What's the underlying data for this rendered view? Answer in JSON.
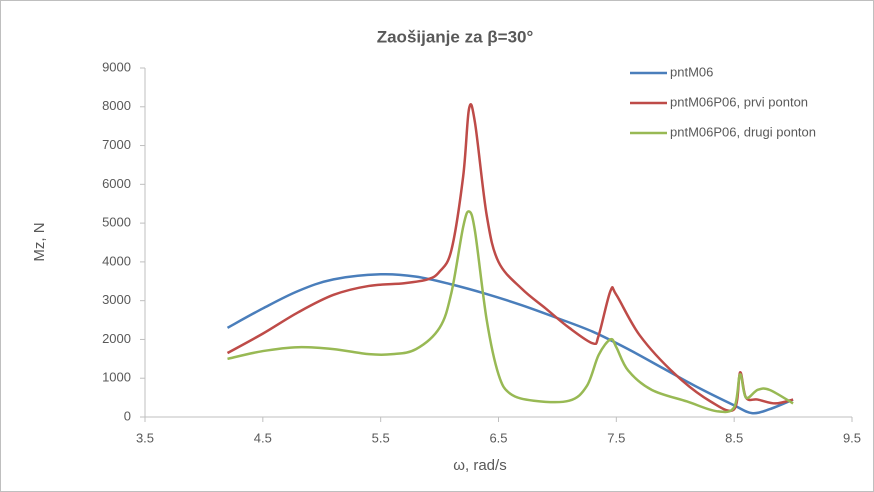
{
  "chart_data": {
    "type": "line",
    "title": "Zaošijanje za β=30°",
    "x_label": "ω, rad/s",
    "y_label": "Mz, N",
    "xlim": [
      3.5,
      9.5
    ],
    "xticks": [
      3.5,
      4.5,
      5.5,
      6.5,
      7.5,
      8.5,
      9.5
    ],
    "ylim": [
      0,
      9000
    ],
    "yticks": [
      0,
      1000,
      2000,
      3000,
      4000,
      5000,
      6000,
      7000,
      8000,
      9000
    ],
    "grid": false,
    "legend": "upper right",
    "series": [
      {
        "name": "pntM06",
        "color": "#4a7ebb",
        "x": [
          4.2,
          4.5,
          4.8,
          5.1,
          5.5,
          5.8,
          6.1,
          6.4,
          6.7,
          7.0,
          7.3,
          7.6,
          7.9,
          8.2,
          8.5,
          8.65,
          8.8,
          9.0
        ],
        "values": [
          2300,
          2800,
          3250,
          3550,
          3680,
          3620,
          3420,
          3170,
          2880,
          2550,
          2200,
          1750,
          1250,
          750,
          300,
          100,
          200,
          450
        ]
      },
      {
        "name": "pntM06P06, prvi ponton",
        "color": "#be4b48",
        "x": [
          4.2,
          4.5,
          4.8,
          5.1,
          5.4,
          5.7,
          5.9,
          6.0,
          6.1,
          6.2,
          6.25,
          6.3,
          6.4,
          6.5,
          6.7,
          6.9,
          7.1,
          7.3,
          7.35,
          7.45,
          7.5,
          7.7,
          8.0,
          8.3,
          8.5,
          8.55,
          8.6,
          8.7,
          8.85,
          9.0
        ],
        "values": [
          1650,
          2150,
          2700,
          3150,
          3380,
          3450,
          3550,
          3750,
          4300,
          6200,
          7950,
          7600,
          5200,
          4000,
          3300,
          2800,
          2300,
          1900,
          2100,
          3250,
          3150,
          2100,
          1100,
          400,
          200,
          1150,
          500,
          450,
          350,
          450
        ]
      },
      {
        "name": "pntM06P06, drugi ponton",
        "color": "#98b954",
        "x": [
          4.2,
          4.5,
          4.8,
          5.1,
          5.4,
          5.6,
          5.8,
          6.0,
          6.1,
          6.2,
          6.25,
          6.3,
          6.4,
          6.5,
          6.6,
          6.8,
          7.1,
          7.25,
          7.35,
          7.45,
          7.5,
          7.6,
          7.8,
          8.1,
          8.35,
          8.5,
          8.55,
          8.6,
          8.7,
          8.8,
          9.0
        ],
        "values": [
          1500,
          1700,
          1800,
          1750,
          1620,
          1620,
          1750,
          2300,
          3200,
          4900,
          5300,
          4800,
          2500,
          1100,
          600,
          420,
          420,
          800,
          1600,
          2000,
          1800,
          1200,
          700,
          400,
          150,
          250,
          1100,
          500,
          700,
          700,
          350
        ]
      }
    ]
  }
}
